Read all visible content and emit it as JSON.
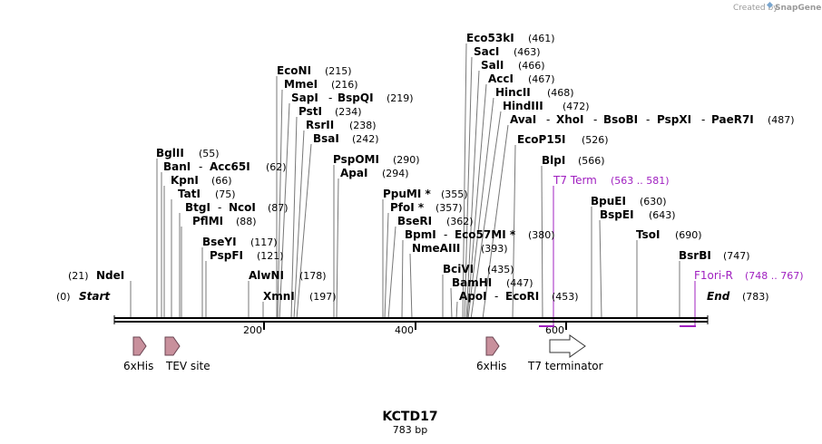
{
  "credit": "Created by",
  "brand": "SnapGene",
  "map": {
    "title": "KCTD17",
    "length_label": "783 bp",
    "start_label": "Start",
    "start_pos": "(0)",
    "end_label": "End",
    "end_pos": "(783)",
    "ticks": [
      "200",
      "400",
      "600"
    ]
  },
  "sites": [
    {
      "name": "NdeI",
      "pos": "(21)"
    },
    {
      "name": "BglII",
      "pos": "(55)"
    },
    {
      "name": "BanI",
      "name2": "Acc65I",
      "pos": "(62)"
    },
    {
      "name": "KpnI",
      "pos": "(66)"
    },
    {
      "name": "TatI",
      "pos": "(75)"
    },
    {
      "name": "BtgI",
      "name2": "NcoI",
      "pos": "(87)"
    },
    {
      "name": "PflMI",
      "pos": "(88)"
    },
    {
      "name": "BseYI",
      "pos": "(117)"
    },
    {
      "name": "PspFI",
      "pos": "(121)"
    },
    {
      "name": "AlwNI",
      "pos": "(178)"
    },
    {
      "name": "XmnI",
      "pos": "(197)"
    },
    {
      "name": "EcoNI",
      "pos": "(215)"
    },
    {
      "name": "MmeI",
      "pos": "(216)"
    },
    {
      "name": "SapI",
      "name2": "BspQI",
      "pos": "(219)"
    },
    {
      "name": "PstI",
      "pos": "(234)"
    },
    {
      "name": "RsrII",
      "pos": "(238)"
    },
    {
      "name": "BsaI",
      "pos": "(242)"
    },
    {
      "name": "PspOMI",
      "pos": "(290)"
    },
    {
      "name": "ApaI",
      "pos": "(294)"
    },
    {
      "name": "PpuMI *",
      "pos": "(355)"
    },
    {
      "name": "PfoI *",
      "pos": "(357)"
    },
    {
      "name": "BseRI",
      "pos": "(362)"
    },
    {
      "name": "BpmI",
      "name2": "Eco57MI *",
      "pos": "(380)"
    },
    {
      "name": "NmeAIII",
      "pos": "(393)"
    },
    {
      "name": "BciVI",
      "pos": "(435)"
    },
    {
      "name": "BamHI",
      "pos": "(447)"
    },
    {
      "name": "ApoI",
      "name2": "EcoRI",
      "pos": "(453)"
    },
    {
      "name": "Eco53kI",
      "pos": "(461)"
    },
    {
      "name": "SacI",
      "pos": "(463)"
    },
    {
      "name": "SalI",
      "pos": "(466)"
    },
    {
      "name": "AccI",
      "pos": "(467)"
    },
    {
      "name": "HincII",
      "pos": "(468)"
    },
    {
      "name": "HindIII",
      "pos": "(472)"
    },
    {
      "name": "AvaI",
      "name2": "XhoI",
      "name3": "BsoBI",
      "name4": "PspXI",
      "name5": "PaeR7I",
      "pos": "(487)"
    },
    {
      "name": "EcoP15I",
      "pos": "(526)"
    },
    {
      "name": "BlpI",
      "pos": "(566)"
    },
    {
      "name": "BpuEI",
      "pos": "(630)"
    },
    {
      "name": "BspEI",
      "pos": "(643)"
    },
    {
      "name": "TsoI",
      "pos": "(690)"
    },
    {
      "name": "BsrBI",
      "pos": "(747)"
    }
  ],
  "primers": [
    {
      "name": "T7 Term",
      "range": "(563 .. 581)"
    },
    {
      "name": "F1ori-R",
      "range": "(748 .. 767)"
    }
  ],
  "features": [
    {
      "label": "6xHis"
    },
    {
      "label": "TEV site"
    },
    {
      "label": "6xHis"
    },
    {
      "label": "T7 terminator"
    }
  ],
  "colors": {
    "feature_fill": "#c8909c",
    "feature_stroke": "#6a4452",
    "primer": "#a020c0"
  }
}
